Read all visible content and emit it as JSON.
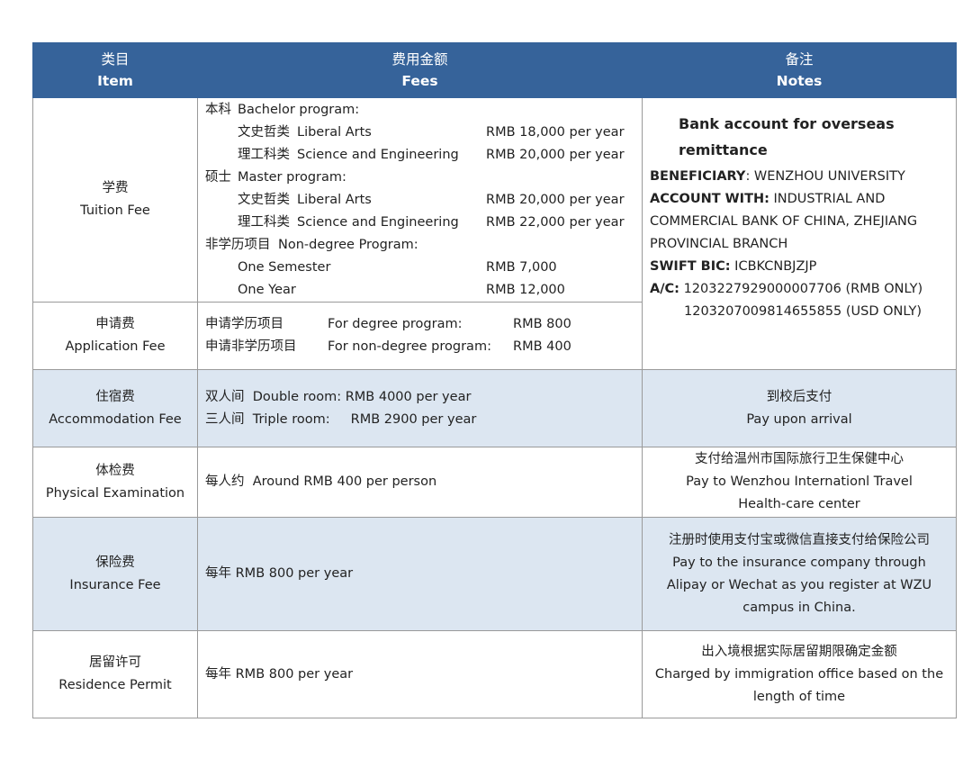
{
  "headers": [
    {
      "zh": "类目",
      "en": "Item"
    },
    {
      "zh": "费用金额",
      "en": "Fees"
    },
    {
      "zh": "备注",
      "en": "Notes"
    }
  ],
  "tuition": {
    "item_zh": "学费",
    "item_en": "Tuition Fee",
    "lines": [
      {
        "zh": "本科",
        "en": "Bachelor program:",
        "price": ""
      },
      {
        "zh": "文史哲类",
        "en": "Liberal Arts",
        "price": "RMB 18,000 per year"
      },
      {
        "zh": "理工科类",
        "en": "Science and Engineering",
        "price": "RMB 20,000 per year"
      },
      {
        "zh": "硕士",
        "en": "Master program:",
        "price": ""
      },
      {
        "zh": "文史哲类",
        "en": "Liberal Arts",
        "price": "RMB 20,000 per year"
      },
      {
        "zh": "理工科类",
        "en": "Science and Engineering",
        "price": "RMB 22,000 per year"
      },
      {
        "zh": "非学历项目",
        "en": "Non-degree Program:",
        "price": ""
      },
      {
        "zh": "",
        "en": "One Semester",
        "price": "RMB 7,000"
      },
      {
        "zh": "",
        "en": "One Year",
        "price": "RMB 12,000"
      }
    ]
  },
  "bank": {
    "title_1": "Bank account for overseas",
    "title_2": "remittance",
    "beneficiary_label": "BENEFICIARY",
    "beneficiary": ": WENZHOU UNIVERSITY",
    "account_label": "ACCOUNT WITH:",
    "account_1": " INDUSTRIAL AND",
    "account_2": "COMMERCIAL BANK OF CHINA, ZHEJIANG",
    "account_3": "PROVINCIAL BRANCH",
    "swift_label": "SWIFT BIC:",
    "swift": " ICBKCNBJZJP",
    "ac_label": "A/C:",
    "ac_rmb": " 1203227929000007706 (RMB ONLY)",
    "ac_usd": "1203207009814655855 (USD ONLY)"
  },
  "application": {
    "item_zh": "申请费",
    "item_en": "Application Fee",
    "lines": [
      {
        "zh": "申请学历项目",
        "en": "For degree program:",
        "price": "RMB 800"
      },
      {
        "zh": "申请非学历项目",
        "en": "For non-degree program:",
        "price": "RMB 400"
      }
    ]
  },
  "accommodation": {
    "item_zh": "住宿费",
    "item_en": "Accommodation Fee",
    "lines": [
      {
        "zh": "双人间",
        "en": "Double room: RMB 4000 per year"
      },
      {
        "zh": "三人间",
        "en": "Triple room:     RMB 2900 per year"
      }
    ],
    "note_zh": "到校后支付",
    "note_en": "Pay upon arrival"
  },
  "physical": {
    "item_zh": "体检费",
    "item_en": "Physical Examination",
    "fee_zh": "每人约",
    "fee_en": "Around RMB 400 per person",
    "note_zh": "支付给温州市国际旅行卫生保健中心",
    "note_en": "Pay to Wenzhou Internationl Travel Health-care center"
  },
  "insurance": {
    "item_zh": "保险费",
    "item_en": "Insurance Fee",
    "fee_zh": "每年",
    "fee_en": "RMB 800 per year",
    "note_zh": "注册时使用支付宝或微信直接支付给保险公司",
    "note_en": "Pay to the insurance company through Alipay or Wechat as you register at WZU campus in China."
  },
  "residence": {
    "item_zh": "居留许可",
    "item_en": "Residence Permit",
    "fee_zh": "每年",
    "fee_en": "RMB 800 per year",
    "note_zh": "出入境根据实际居留期限确定金额",
    "note_en": "Charged by immigration office based on the length of time"
  },
  "colors": {
    "header": "#36639a",
    "shaded_row": "#dce6f1",
    "border": "#9a9a9a"
  }
}
